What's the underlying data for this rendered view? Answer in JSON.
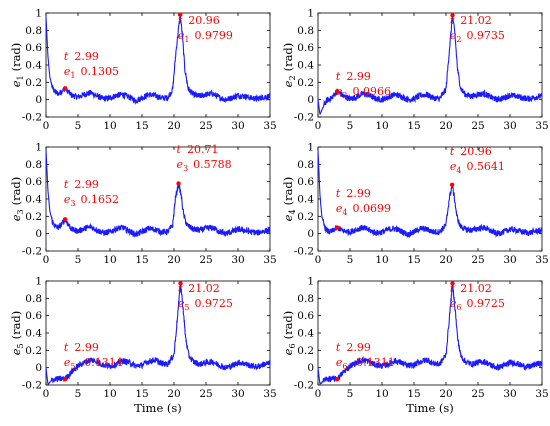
{
  "chart_data": [
    {
      "type": "line",
      "xlabel": "",
      "ylabel": "e",
      "ylabel_sub": "1",
      "ylabel_unit": "(rad)",
      "xlim": [
        0,
        35
      ],
      "ylim": [
        -0.2,
        1
      ],
      "xticks": [
        0,
        5,
        10,
        15,
        20,
        25,
        30,
        35
      ],
      "yticks": [
        -0.2,
        0,
        0.2,
        0.4,
        0.6,
        0.8,
        1
      ],
      "series": [
        {
          "x": [
            0,
            0.3,
            0.6,
            1,
            1.5,
            2,
            2.99,
            4,
            5,
            6,
            7,
            8,
            9,
            10,
            11,
            12,
            13,
            14,
            15,
            16,
            17,
            18,
            19,
            19.8,
            20.3,
            20.96,
            21.3,
            21.7,
            22.2,
            23,
            24,
            25,
            26,
            27,
            28,
            29,
            30,
            31,
            32,
            33,
            34,
            35
          ],
          "y": [
            0.96,
            0.5,
            0.26,
            0.14,
            0.08,
            0.07,
            0.1305,
            0.05,
            0.03,
            0.06,
            0.08,
            0.04,
            0.01,
            0.02,
            0.05,
            0.06,
            0.03,
            -0.01,
            0.02,
            0.06,
            0.05,
            0.02,
            0.02,
            0.12,
            0.55,
            0.9799,
            0.75,
            0.35,
            0.13,
            0.06,
            0.04,
            0.06,
            0.07,
            0.03,
            0.0,
            0.02,
            0.05,
            0.04,
            0.02,
            0.01,
            0.03,
            0.04
          ]
        }
      ],
      "annotations": [
        {
          "x": 2.99,
          "y": 0.1305,
          "t_label": "t",
          "t_value": "2.99",
          "e_label": "e",
          "e_sub": "1",
          "e_value": "0.1305"
        },
        {
          "x": 20.96,
          "y": 0.9799,
          "t_label": "t",
          "t_value": "20.96",
          "e_label": "e",
          "e_sub": "1",
          "e_value": "0.9799"
        }
      ]
    },
    {
      "type": "line",
      "xlabel": "",
      "ylabel": "e",
      "ylabel_sub": "2",
      "ylabel_unit": "(rad)",
      "xlim": [
        0,
        35
      ],
      "ylim": [
        -0.2,
        1
      ],
      "xticks": [
        0,
        5,
        10,
        15,
        20,
        25,
        30,
        35
      ],
      "yticks": [
        -0.2,
        0,
        0.2,
        0.4,
        0.6,
        0.8,
        1
      ],
      "series": [
        {
          "x": [
            0,
            0.3,
            0.6,
            1,
            1.5,
            2,
            2.99,
            4,
            5,
            6,
            7,
            8,
            9,
            10,
            11,
            12,
            13,
            14,
            15,
            16,
            17,
            18,
            19,
            20,
            20.5,
            21.02,
            21.4,
            21.8,
            22.3,
            23,
            24,
            25,
            26,
            27,
            28,
            29,
            30,
            31,
            32,
            33,
            34,
            35
          ],
          "y": [
            0.0,
            -0.17,
            -0.12,
            -0.05,
            0.0,
            0.01,
            0.0966,
            0.04,
            0.01,
            0.03,
            0.07,
            0.05,
            0.01,
            0.0,
            0.03,
            0.06,
            0.04,
            0.0,
            0.01,
            0.05,
            0.06,
            0.02,
            0.01,
            0.12,
            0.55,
            0.9735,
            0.75,
            0.35,
            0.13,
            0.06,
            0.04,
            0.06,
            0.07,
            0.03,
            0.0,
            0.02,
            0.05,
            0.04,
            0.02,
            0.01,
            0.03,
            0.04
          ]
        }
      ],
      "annotations": [
        {
          "x": 2.99,
          "y": 0.0966,
          "t_label": "t",
          "t_value": "2.99",
          "e_label": "e",
          "e_sub": "2",
          "e_value": "0.0966"
        },
        {
          "x": 21.02,
          "y": 0.9735,
          "t_label": "t",
          "t_value": "21.02",
          "e_label": "e",
          "e_sub": "2",
          "e_value": "0.9735"
        }
      ]
    },
    {
      "type": "line",
      "xlabel": "",
      "ylabel": "e",
      "ylabel_sub": "3",
      "ylabel_unit": "(rad)",
      "xlim": [
        0,
        35
      ],
      "ylim": [
        -0.2,
        1
      ],
      "xticks": [
        0,
        5,
        10,
        15,
        20,
        25,
        30,
        35
      ],
      "yticks": [
        -0.2,
        0,
        0.2,
        0.4,
        0.6,
        0.8,
        1
      ],
      "series": [
        {
          "x": [
            0,
            0.3,
            0.6,
            1,
            1.5,
            2,
            2.99,
            4,
            5,
            6,
            7,
            8,
            9,
            10,
            11,
            12,
            13,
            14,
            15,
            16,
            17,
            18,
            19,
            19.8,
            20.2,
            20.71,
            21.1,
            21.5,
            22,
            23,
            24,
            25,
            26,
            27,
            28,
            29,
            30,
            31,
            32,
            33,
            34,
            35
          ],
          "y": [
            0.97,
            0.5,
            0.26,
            0.14,
            0.08,
            0.07,
            0.1652,
            0.05,
            0.03,
            0.06,
            0.08,
            0.04,
            0.01,
            0.02,
            0.06,
            0.07,
            0.03,
            -0.01,
            0.02,
            0.06,
            0.05,
            0.02,
            0.02,
            0.1,
            0.4,
            0.5788,
            0.45,
            0.22,
            0.1,
            0.05,
            0.04,
            0.06,
            0.07,
            0.03,
            0.0,
            0.02,
            0.05,
            0.04,
            0.02,
            0.01,
            0.03,
            0.04
          ]
        }
      ],
      "annotations": [
        {
          "x": 2.99,
          "y": 0.1652,
          "t_label": "t",
          "t_value": "2.99",
          "e_label": "e",
          "e_sub": "3",
          "e_value": "0.1652"
        },
        {
          "x": 20.71,
          "y": 0.5788,
          "t_label": "t",
          "t_value": "20.71",
          "e_label": "e",
          "e_sub": "3",
          "e_value": "0.5788"
        }
      ]
    },
    {
      "type": "line",
      "xlabel": "",
      "ylabel": "e",
      "ylabel_sub": "4",
      "ylabel_unit": "(rad)",
      "xlim": [
        0,
        35
      ],
      "ylim": [
        -0.2,
        1
      ],
      "xticks": [
        0,
        5,
        10,
        15,
        20,
        25,
        30,
        35
      ],
      "yticks": [
        -0.2,
        0,
        0.2,
        0.4,
        0.6,
        0.8,
        1
      ],
      "series": [
        {
          "x": [
            0,
            0.3,
            0.6,
            1,
            1.5,
            2,
            2.99,
            4,
            5,
            6,
            7,
            8,
            9,
            10,
            11,
            12,
            13,
            14,
            15,
            16,
            17,
            18,
            19,
            20,
            20.5,
            20.96,
            21.3,
            21.7,
            22.2,
            23,
            24,
            25,
            26,
            27,
            28,
            29,
            30,
            31,
            32,
            33,
            34,
            35
          ],
          "y": [
            0.97,
            0.45,
            0.2,
            0.08,
            0.03,
            0.02,
            0.0699,
            0.03,
            0.02,
            0.05,
            0.07,
            0.04,
            0.01,
            0.02,
            0.05,
            0.06,
            0.03,
            -0.01,
            0.02,
            0.06,
            0.05,
            0.02,
            0.02,
            0.1,
            0.4,
            0.5641,
            0.42,
            0.2,
            0.09,
            0.05,
            0.04,
            0.06,
            0.07,
            0.03,
            0.0,
            0.02,
            0.05,
            0.04,
            0.02,
            0.01,
            0.03,
            0.04
          ]
        }
      ],
      "annotations": [
        {
          "x": 2.99,
          "y": 0.0699,
          "t_label": "t",
          "t_value": "2.99",
          "e_label": "e",
          "e_sub": "4",
          "e_value": "0.0699"
        },
        {
          "x": 20.96,
          "y": 0.5641,
          "t_label": "t",
          "t_value": "20.96",
          "e_label": "e",
          "e_sub": "4",
          "e_value": "0.5641"
        }
      ]
    },
    {
      "type": "line",
      "xlabel": "Time (s)",
      "ylabel": "e",
      "ylabel_sub": "5",
      "ylabel_unit": "(rad)",
      "xlim": [
        0,
        35
      ],
      "ylim": [
        -0.2,
        1
      ],
      "xticks": [
        0,
        5,
        10,
        15,
        20,
        25,
        30,
        35
      ],
      "yticks": [
        -0.2,
        0,
        0.2,
        0.4,
        0.6,
        0.8,
        1
      ],
      "series": [
        {
          "x": [
            0,
            0.3,
            0.6,
            1,
            1.5,
            2,
            2.99,
            4,
            5,
            6,
            7,
            8,
            9,
            10,
            11,
            12,
            13,
            14,
            15,
            16,
            17,
            18,
            19,
            20,
            20.5,
            21.02,
            21.4,
            21.8,
            22.3,
            23,
            24,
            25,
            26,
            27,
            28,
            29,
            30,
            31,
            32,
            33,
            34,
            35
          ],
          "y": [
            0.0,
            -0.19,
            -0.17,
            -0.14,
            -0.13,
            -0.13,
            -0.1314,
            -0.05,
            0.02,
            0.06,
            0.09,
            0.07,
            0.03,
            0.02,
            0.04,
            0.08,
            0.06,
            0.02,
            0.03,
            0.07,
            0.09,
            0.05,
            0.04,
            0.15,
            0.55,
            0.9725,
            0.7,
            0.35,
            0.14,
            0.07,
            0.04,
            0.06,
            0.07,
            0.03,
            0.0,
            0.02,
            0.06,
            0.05,
            0.02,
            0.01,
            0.04,
            0.05
          ]
        }
      ],
      "annotations": [
        {
          "x": 2.99,
          "y": -0.1314,
          "t_label": "t",
          "t_value": "2.99",
          "e_label": "e",
          "e_sub": "5",
          "e_value": "-0.1314"
        },
        {
          "x": 21.02,
          "y": 0.9725,
          "t_label": "t",
          "t_value": "21.02",
          "e_label": "e",
          "e_sub": "5",
          "e_value": "0.9725"
        }
      ]
    },
    {
      "type": "line",
      "xlabel": "Time (s)",
      "ylabel": "e",
      "ylabel_sub": "6",
      "ylabel_unit": "(rad)",
      "xlim": [
        0,
        35
      ],
      "ylim": [
        -0.2,
        1
      ],
      "xticks": [
        0,
        5,
        10,
        15,
        20,
        25,
        30,
        35
      ],
      "yticks": [
        -0.2,
        0,
        0.2,
        0.4,
        0.6,
        0.8,
        1
      ],
      "series": [
        {
          "x": [
            0,
            0.3,
            0.6,
            1,
            1.5,
            2,
            2.99,
            4,
            5,
            6,
            7,
            8,
            9,
            10,
            11,
            12,
            13,
            14,
            15,
            16,
            17,
            18,
            19,
            20,
            20.5,
            21.02,
            21.4,
            21.8,
            22.3,
            23,
            24,
            25,
            26,
            27,
            28,
            29,
            30,
            31,
            32,
            33,
            34,
            35
          ],
          "y": [
            0.0,
            -0.19,
            -0.17,
            -0.14,
            -0.13,
            -0.13,
            -0.1311,
            -0.05,
            0.02,
            0.06,
            0.09,
            0.07,
            0.03,
            0.02,
            0.04,
            0.08,
            0.06,
            0.02,
            0.03,
            0.07,
            0.09,
            0.05,
            0.04,
            0.15,
            0.55,
            0.9725,
            0.7,
            0.35,
            0.14,
            0.07,
            0.04,
            0.06,
            0.07,
            0.03,
            0.0,
            0.02,
            0.06,
            0.05,
            0.02,
            0.01,
            0.04,
            0.05
          ]
        }
      ],
      "annotations": [
        {
          "x": 2.99,
          "y": -0.1311,
          "t_label": "t",
          "t_value": "2.99",
          "e_label": "e",
          "e_sub": "6",
          "e_value": "-0.1311"
        },
        {
          "x": 21.02,
          "y": 0.9725,
          "t_label": "t",
          "t_value": "21.02",
          "e_label": "e",
          "e_sub": "6",
          "e_value": "0.9725"
        }
      ]
    }
  ],
  "colors": {
    "line": "#1a1aff",
    "marker": "#ff0000",
    "annotation": "#ff0000",
    "axis": "#000000"
  }
}
